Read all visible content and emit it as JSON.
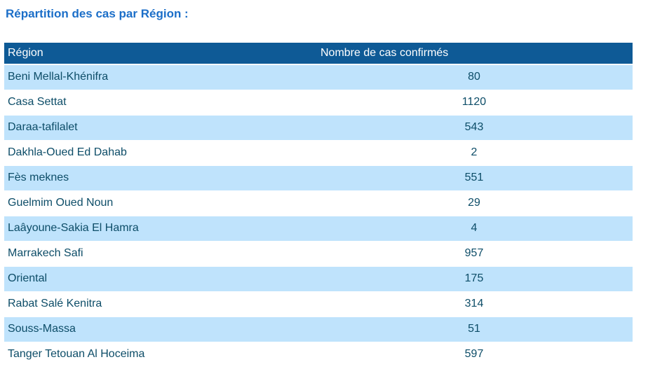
{
  "page": {
    "title": "Répartition des cas par Région :"
  },
  "colors": {
    "title_text": "#1B6EC8",
    "header_bg": "#0E5A96",
    "header_text": "#FFFFFF",
    "row_alt_bg": "#BFE3FC",
    "row_bg": "#FFFFFF",
    "cell_text": "#0D4D68"
  },
  "table": {
    "columns": [
      "Région",
      "Nombre de cas confirmés"
    ],
    "rows": [
      {
        "region": "Beni Mellal-Khénifra",
        "cases": "80"
      },
      {
        "region": "Casa Settat",
        "cases": "1120"
      },
      {
        "region": "Daraa-tafilalet",
        "cases": "543"
      },
      {
        "region": "Dakhla-Oued Ed Dahab",
        "cases": "2"
      },
      {
        "region": "Fès meknes",
        "cases": "551"
      },
      {
        "region": "Guelmim Oued Noun",
        "cases": "29"
      },
      {
        "region": "Laâyoune-Sakia El Hamra",
        "cases": "4"
      },
      {
        "region": "Marrakech Safi",
        "cases": "957"
      },
      {
        "region": "Oriental",
        "cases": "175"
      },
      {
        "region": "Rabat Salé Kenitra",
        "cases": "314"
      },
      {
        "region": "Souss-Massa",
        "cases": "51"
      },
      {
        "region": "Tanger Tetouan Al Hoceima",
        "cases": "597"
      }
    ]
  },
  "chart_data": {
    "type": "table",
    "title": "Répartition des cas par Région :",
    "columns": [
      "Région",
      "Nombre de cas confirmés"
    ],
    "categories": [
      "Beni Mellal-Khénifra",
      "Casa Settat",
      "Daraa-tafilalet",
      "Dakhla-Oued Ed Dahab",
      "Fès meknes",
      "Guelmim Oued Noun",
      "Laâyoune-Sakia El Hamra",
      "Marrakech Safi",
      "Oriental",
      "Rabat Salé Kenitra",
      "Souss-Massa",
      "Tanger Tetouan Al Hoceima"
    ],
    "values": [
      80,
      1120,
      543,
      2,
      551,
      29,
      4,
      957,
      175,
      314,
      51,
      597
    ]
  }
}
